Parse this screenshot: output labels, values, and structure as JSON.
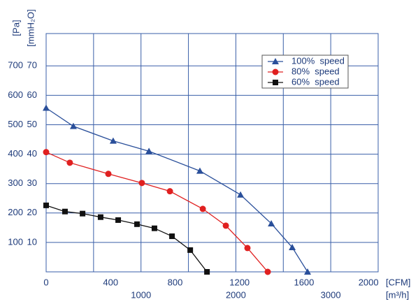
{
  "chart_data": {
    "type": "line",
    "x_label": "[CFM]",
    "x2_label": "[m³/h]",
    "y_label": "[Pa]",
    "y2_label": "[mmH₂O]",
    "xlim": [
      0,
      2060
    ],
    "xticks": [
      0,
      400,
      800,
      1200,
      1600,
      2000
    ],
    "x2lim": [
      0,
      3500
    ],
    "x2ticks": [
      1000,
      2000,
      3000
    ],
    "x2grid": [
      500,
      1500,
      2500
    ],
    "ylim": [
      0,
      810
    ],
    "yticks": [
      100,
      200,
      300,
      400,
      500,
      600,
      700
    ],
    "y2lim": [
      0,
      81
    ],
    "y2ticks": [
      10,
      20,
      30,
      40,
      50,
      60,
      70
    ],
    "grid": true,
    "legend": "upper right",
    "series": [
      {
        "name": "100%  speed",
        "color": "#2a4f9a",
        "marker": "triangle",
        "x": [
          0,
          169,
          416,
          638,
          954,
          1206,
          1397,
          1527,
          1622
        ],
        "values": [
          557,
          495,
          445,
          410,
          343,
          262,
          164,
          83,
          0
        ]
      },
      {
        "name": "80%  speed",
        "color": "#e02020",
        "marker": "circle",
        "x": [
          0,
          147,
          386,
          594,
          768,
          972,
          1115,
          1249,
          1375
        ],
        "values": [
          407,
          371,
          333,
          302,
          274,
          214,
          157,
          81,
          0
        ]
      },
      {
        "name": "60%  speed",
        "color": "#111111",
        "marker": "square",
        "x": [
          0,
          117,
          226,
          338,
          447,
          564,
          672,
          781,
          894,
          998
        ],
        "values": [
          226,
          205,
          198,
          186,
          176,
          162,
          148,
          121,
          74,
          0
        ]
      }
    ]
  }
}
